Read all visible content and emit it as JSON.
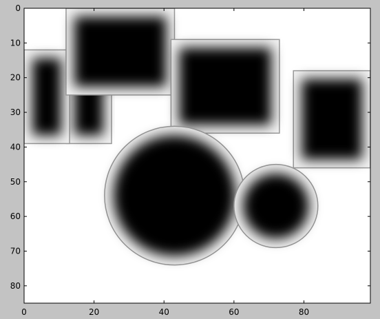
{
  "chart_data": {
    "type": "heatmap",
    "colormap": "grayscale",
    "xlim": [
      0,
      99
    ],
    "ylim": [
      85,
      0
    ],
    "x_ticks": [
      {
        "value": 0,
        "label": "0"
      },
      {
        "value": 20,
        "label": "20"
      },
      {
        "value": 40,
        "label": "40"
      },
      {
        "value": 60,
        "label": "60"
      },
      {
        "value": 80,
        "label": "80"
      }
    ],
    "y_ticks": [
      {
        "value": 0,
        "label": "0"
      },
      {
        "value": 10,
        "label": "10"
      },
      {
        "value": 20,
        "label": "20"
      },
      {
        "value": 30,
        "label": "30"
      },
      {
        "value": 40,
        "label": "40"
      },
      {
        "value": 50,
        "label": "50"
      },
      {
        "value": 60,
        "label": "60"
      },
      {
        "value": 70,
        "label": "70"
      },
      {
        "value": 80,
        "label": "80"
      }
    ],
    "blobs": [
      {
        "shape": "rect",
        "x0": 12,
        "x1": 25,
        "y0": 12,
        "y1": 39
      },
      {
        "shape": "rect",
        "x0": 0,
        "x1": 13,
        "y0": 12,
        "y1": 39
      },
      {
        "shape": "rect",
        "x0": 12,
        "x1": 43,
        "y0": 0,
        "y1": 25
      },
      {
        "shape": "rect",
        "x0": 42,
        "x1": 73,
        "y0": 9,
        "y1": 36
      },
      {
        "shape": "rect",
        "x0": 77,
        "x1": 99,
        "y0": 18,
        "y1": 46
      },
      {
        "shape": "circle",
        "cx": 43,
        "cy": 54,
        "r": 20
      },
      {
        "shape": "circle",
        "cx": 72,
        "cy": 57,
        "r": 12
      }
    ]
  }
}
